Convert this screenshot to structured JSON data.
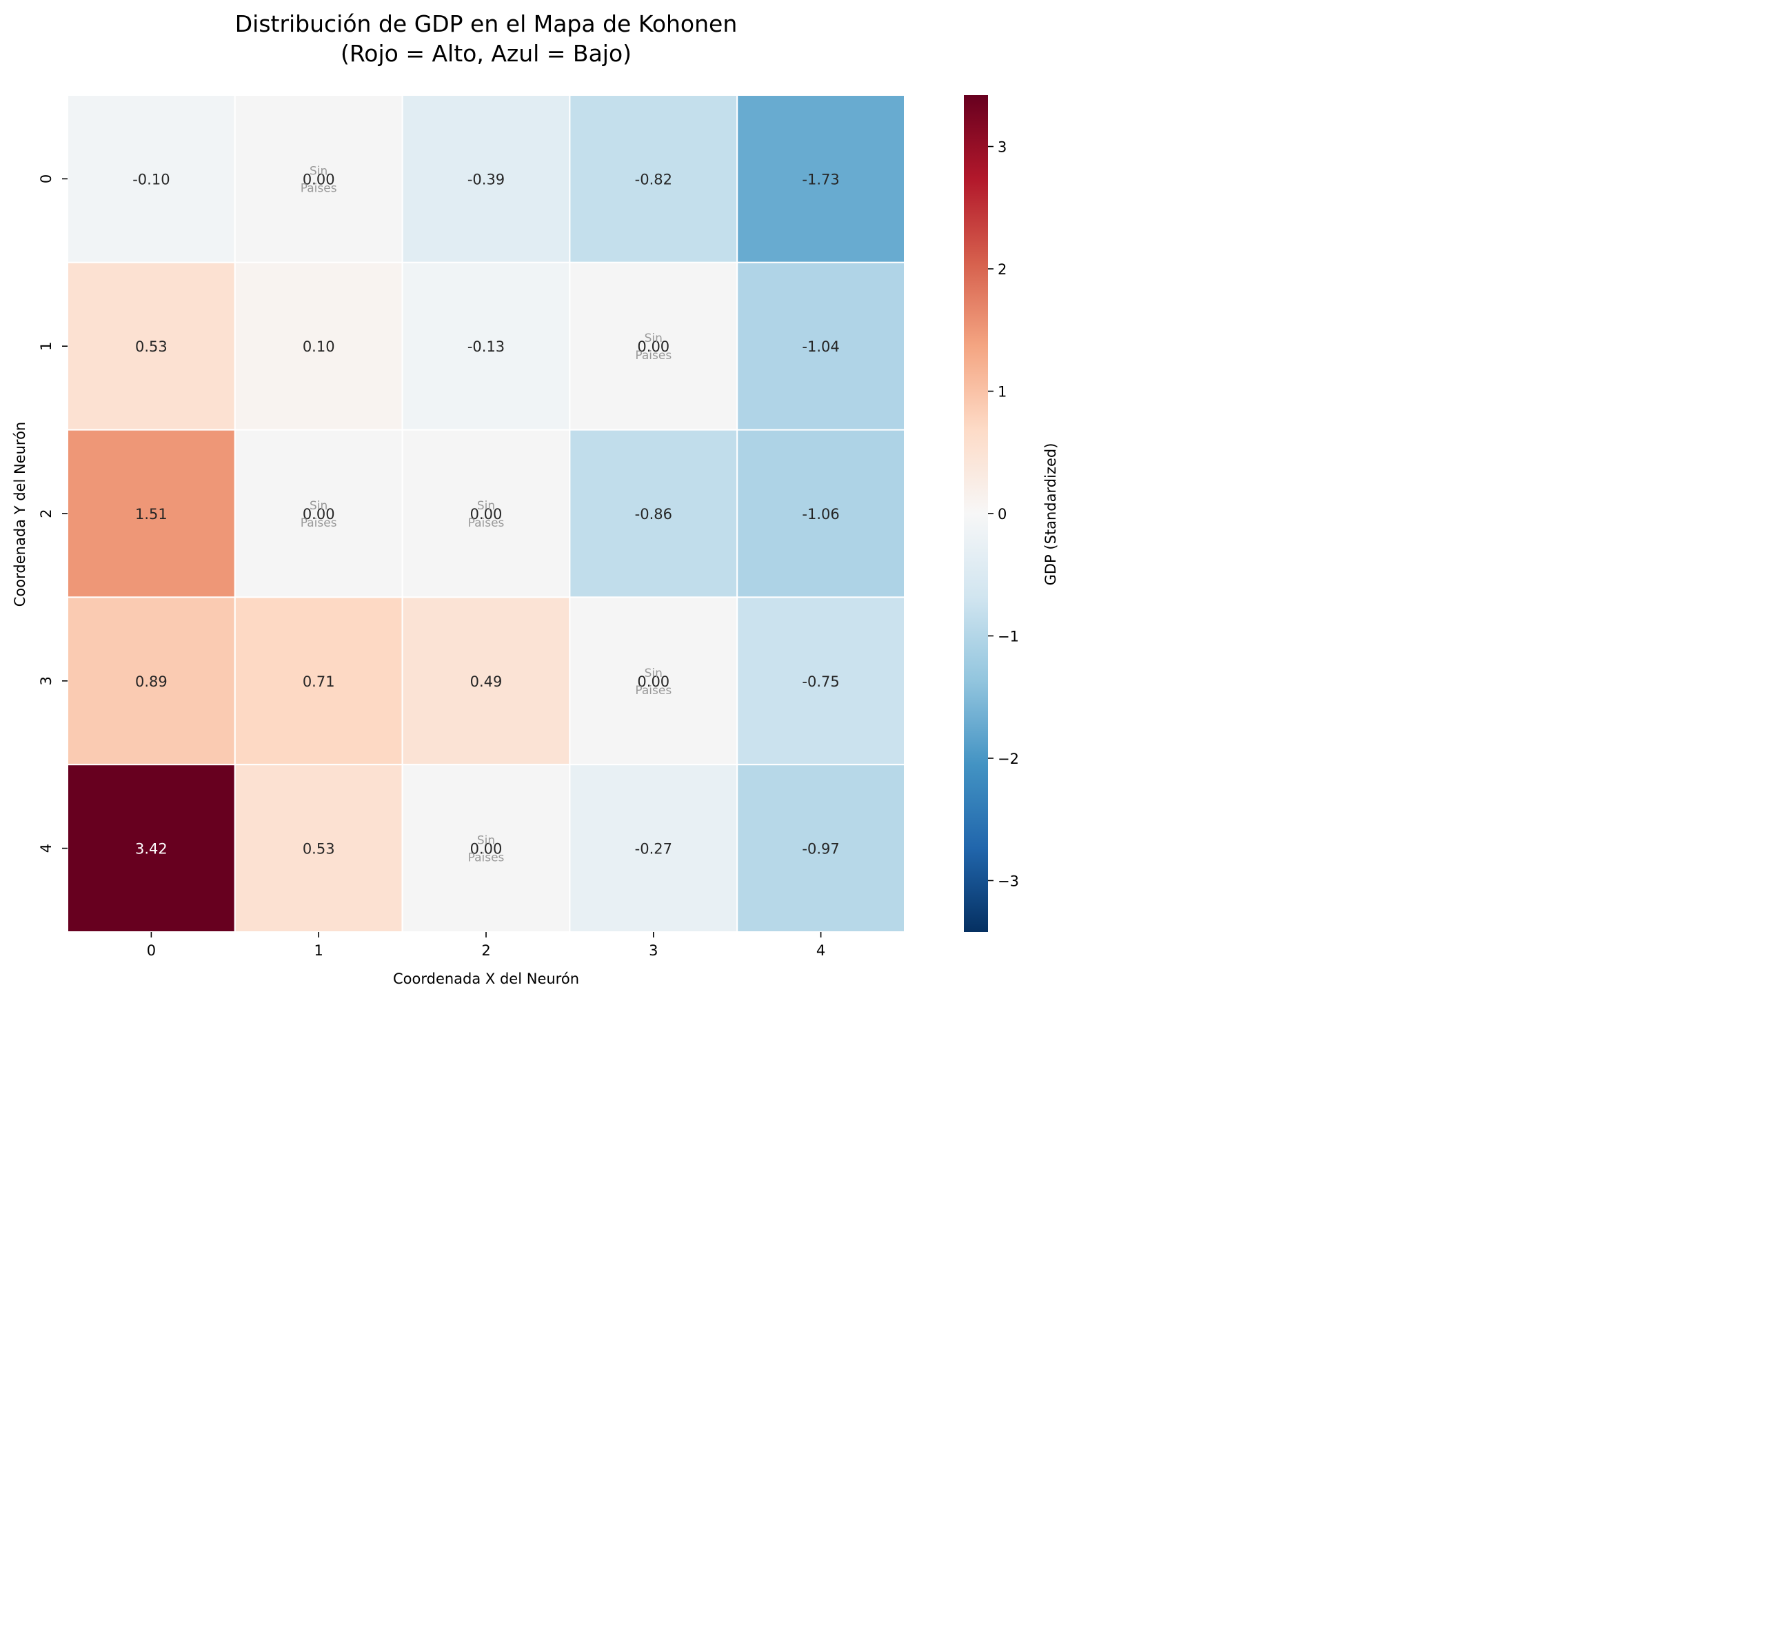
{
  "chart_data": {
    "type": "heatmap",
    "title_line1": "Distribución de GDP en el Mapa de Kohonen",
    "title_line2": "(Rojo = Alto, Azul = Bajo)",
    "xlabel": "Coordenada X del Neurón",
    "ylabel": "Coordenada Y del Neurón",
    "x_ticks": [
      "0",
      "1",
      "2",
      "3",
      "4"
    ],
    "y_ticks": [
      "0",
      "1",
      "2",
      "3",
      "4"
    ],
    "values": [
      [
        -0.1,
        0.0,
        -0.39,
        -0.82,
        -1.73
      ],
      [
        0.53,
        0.1,
        -0.13,
        0.0,
        -1.04
      ],
      [
        1.51,
        0.0,
        0.0,
        -0.86,
        -1.06
      ],
      [
        0.89,
        0.71,
        0.49,
        0.0,
        -0.75
      ],
      [
        3.42,
        0.53,
        0.0,
        -0.27,
        -0.97
      ]
    ],
    "empty_cells": [
      [
        0,
        1
      ],
      [
        1,
        3
      ],
      [
        2,
        1
      ],
      [
        2,
        2
      ],
      [
        3,
        3
      ],
      [
        4,
        2
      ]
    ],
    "empty_label_line1": "Sin",
    "empty_label_line2": "Paises",
    "empty_cell_color": "#f5f5f5",
    "colorbar": {
      "label": "GDP (Standardized)",
      "range": [
        -3.42,
        3.42
      ],
      "ticks": [
        "3",
        "2",
        "1",
        "0",
        "−1",
        "−2",
        "−3"
      ],
      "tick_values": [
        3,
        2,
        1,
        0,
        -1,
        -2,
        -3
      ]
    },
    "colormap": "RdBu_r",
    "grid_line_color": "#ffffff",
    "text_color_dark": "#262626",
    "text_color_light": "#ffffff",
    "empty_text_color": "#999999"
  }
}
